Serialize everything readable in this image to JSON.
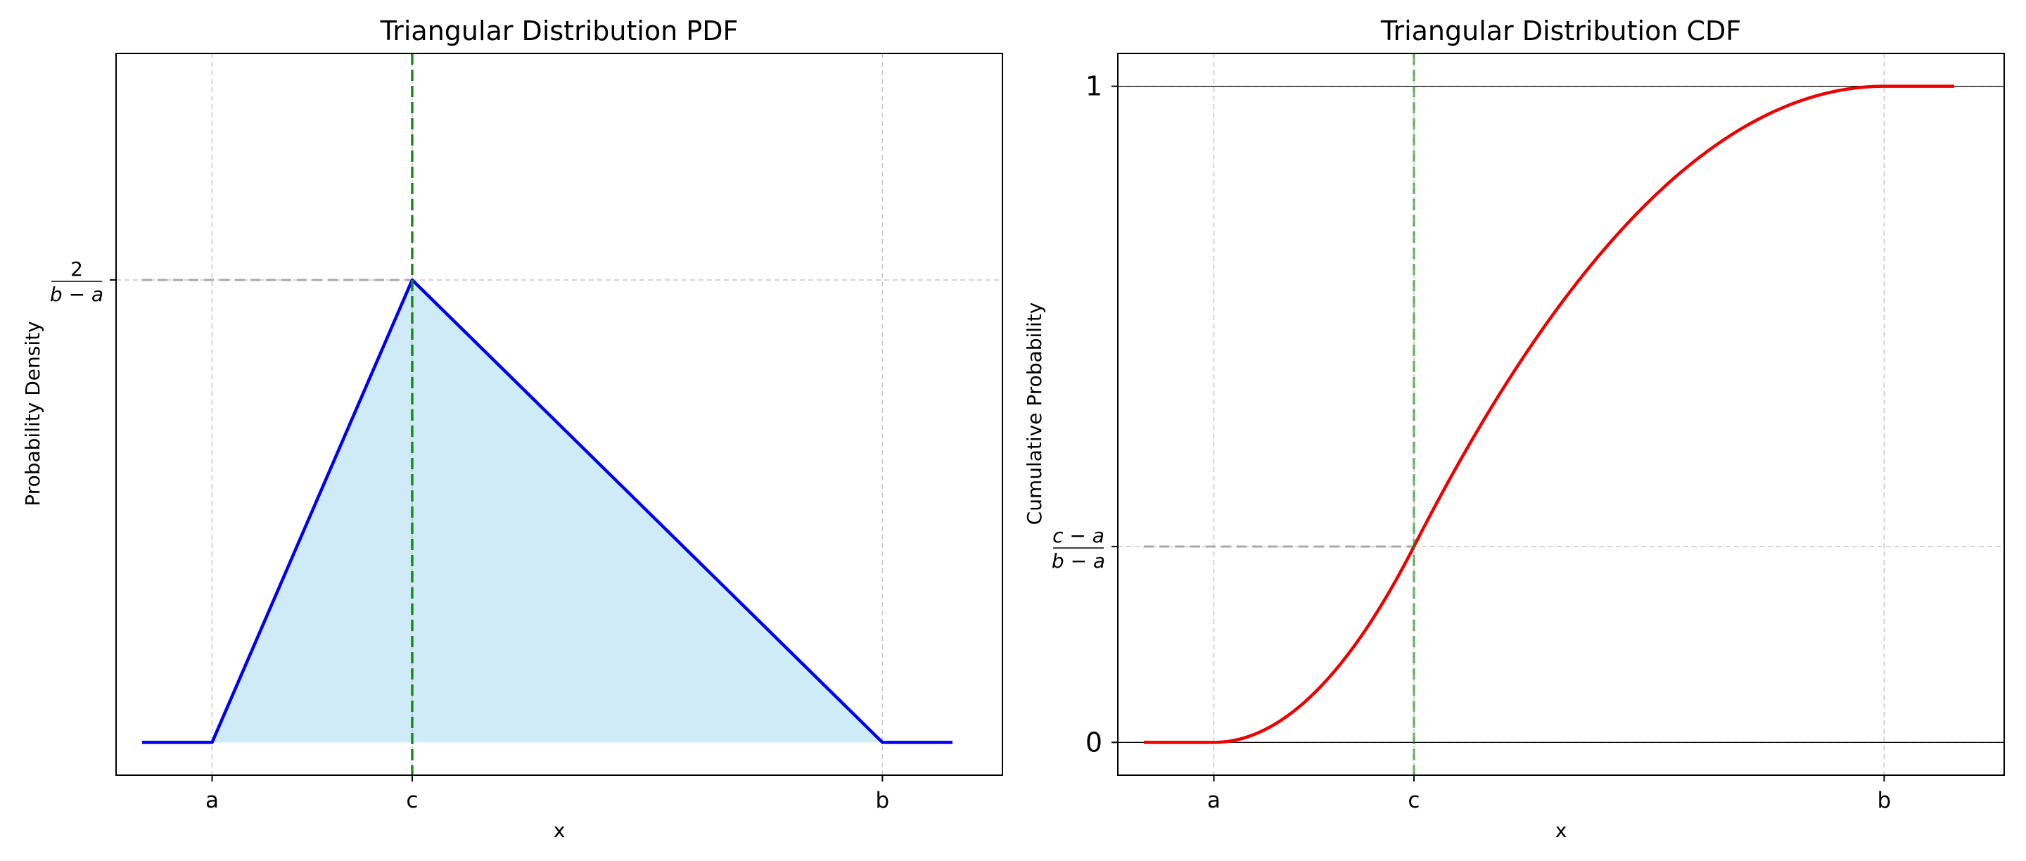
{
  "chart_data": [
    {
      "type": "area",
      "title": "Triangular Distribution PDF",
      "xlabel": "x",
      "ylabel": "Probability Density",
      "params": {
        "a": 1,
        "c": 3,
        "b": 7.7
      },
      "xlim": [
        0.04,
        8.9
      ],
      "ylim": [
        -0.0212,
        0.4447
      ],
      "x_ticks": [
        {
          "value": 1,
          "label": "a"
        },
        {
          "value": 3,
          "label": "c"
        },
        {
          "value": 7.7,
          "label": "b"
        }
      ],
      "y_ticks": [
        {
          "value": 0.2985,
          "label_num": "2",
          "label_den": "b − a"
        }
      ],
      "series": [
        {
          "color": "#0000ee",
          "x": [
            0.3,
            1,
            3,
            7.7,
            8.4
          ],
          "y": [
            0,
            0,
            0.2985,
            0,
            0
          ],
          "fill": "#87ceeb"
        }
      ],
      "vline": {
        "x": 3,
        "color": "#1a8a1a"
      },
      "hline_dashed": {
        "y": 0.2985,
        "x_end": 3,
        "color": "#aaaaaa"
      },
      "grid": true
    },
    {
      "type": "line",
      "title": "Triangular Distribution CDF",
      "xlabel": "x",
      "ylabel": "Cumulative Probability",
      "params": {
        "a": 1,
        "c": 3,
        "b": 7.7
      },
      "xlim": [
        0.04,
        8.9
      ],
      "ylim": [
        -0.05,
        1.05
      ],
      "x_ticks": [
        {
          "value": 1,
          "label": "a"
        },
        {
          "value": 3,
          "label": "c"
        },
        {
          "value": 7.7,
          "label": "b"
        }
      ],
      "y_ticks": [
        {
          "value": 0,
          "label": "0"
        },
        {
          "value": 0.2985,
          "label_num": "c − a",
          "label_den": "b − a"
        },
        {
          "value": 1,
          "label": "1"
        }
      ],
      "series": [
        {
          "color": "#ee0000",
          "x": [
            0.3,
            0.5,
            1,
            1.25,
            1.5,
            1.75,
            2,
            2.25,
            2.5,
            2.75,
            3,
            3.5,
            4,
            4.5,
            5,
            5.5,
            6,
            6.5,
            7,
            7.3,
            7.7,
            8.4
          ],
          "y": [
            0,
            0,
            0,
            0.0047,
            0.0187,
            0.042,
            0.0746,
            0.1166,
            0.1679,
            0.2286,
            0.2985,
            0.4187,
            0.5284,
            0.6274,
            0.7158,
            0.7935,
            0.8605,
            0.9169,
            0.9627,
            0.9839,
            1,
            1
          ]
        }
      ],
      "hlines_solid": [
        0,
        1
      ],
      "vline": {
        "x": 3,
        "color": "#1a8a1a"
      },
      "hline_dashed": {
        "y": 0.2985,
        "x_end": 3,
        "color": "#aaaaaa"
      },
      "grid": true
    }
  ]
}
